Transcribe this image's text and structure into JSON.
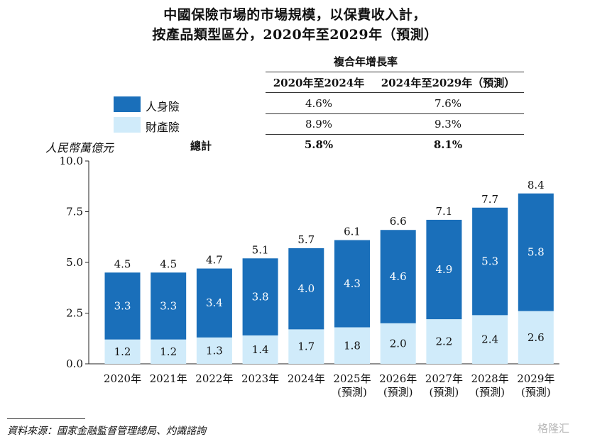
{
  "chart_data": {
    "type": "bar",
    "stacked": true,
    "title": "中國保險市場的市場規模，以保費收入計，",
    "subtitle": "按產品類型區分，2020年至2029年（預測）",
    "ylabel": "人民幣萬億元",
    "ylim": [
      0,
      10
    ],
    "yticks": [
      "0.0",
      "2.5",
      "5.0",
      "7.5",
      "10.0"
    ],
    "categories": [
      [
        "2020年"
      ],
      [
        "2021年"
      ],
      [
        "2022年"
      ],
      [
        "2023年"
      ],
      [
        "2024年"
      ],
      [
        "2025年",
        "(預測)"
      ],
      [
        "2026年",
        "(預測)"
      ],
      [
        "2027年",
        "(預測)"
      ],
      [
        "2028年",
        "(預測)"
      ],
      [
        "2029年",
        "(預測)"
      ]
    ],
    "series": [
      {
        "name": "財產險",
        "color": "#d0ebfa",
        "values": [
          1.2,
          1.2,
          1.3,
          1.4,
          1.7,
          1.8,
          2.0,
          2.2,
          2.4,
          2.6
        ]
      },
      {
        "name": "人身險",
        "color": "#1a6fba",
        "values": [
          3.3,
          3.3,
          3.4,
          3.8,
          4.0,
          4.3,
          4.6,
          4.9,
          5.3,
          5.8
        ]
      }
    ],
    "totals": [
      4.5,
      4.5,
      4.7,
      5.1,
      5.7,
      6.1,
      6.6,
      7.1,
      7.7,
      8.4
    ],
    "legend_position": "top-left",
    "grid": false
  },
  "cagr_table": {
    "title": "複合年增長率",
    "headers": [
      "2020年至2024年",
      "2024年至2029年（預測）"
    ],
    "rows": [
      {
        "label": "人身險",
        "values": [
          "4.6%",
          "7.6%"
        ]
      },
      {
        "label": "財產險",
        "values": [
          "8.9%",
          "9.3%"
        ]
      },
      {
        "label": "總計",
        "values": [
          "5.8%",
          "8.1%"
        ]
      }
    ]
  },
  "source": "資料來源：國家金融監督管理總局、灼識諮詢",
  "watermark": "格隆汇"
}
